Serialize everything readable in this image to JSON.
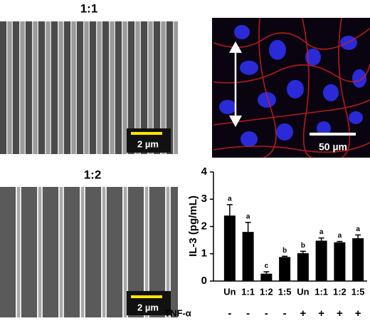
{
  "panels": {
    "sem_1_1": {
      "label": "1:1",
      "scale_bar": "2 µm"
    },
    "fluorescence": {
      "scale_bar": "50 µm"
    },
    "sem_1_2": {
      "label": "1:2",
      "scale_bar": "2 µm"
    }
  },
  "chart_data": {
    "type": "bar",
    "ylabel": "IL-3 (pg/mL)",
    "categories": [
      "Un",
      "1:1",
      "1:2",
      "1:5",
      "Un",
      "1:1",
      "1:2",
      "1:5"
    ],
    "values": [
      2.4,
      1.8,
      0.27,
      0.88,
      1.02,
      1.48,
      1.42,
      1.57
    ],
    "errors": [
      0.4,
      0.35,
      0.07,
      0.03,
      0.07,
      0.1,
      0.03,
      0.12
    ],
    "annotations": [
      "a",
      "a",
      "c",
      "b",
      "b",
      "a",
      "a",
      "a"
    ],
    "treatment_label": "TNF-α",
    "treatment": [
      "-",
      "-",
      "-",
      "-",
      "+",
      "+",
      "+",
      "+"
    ],
    "color": "#000000",
    "ylim": [
      0,
      4
    ],
    "yticks": [
      0,
      1,
      2,
      3,
      4
    ]
  }
}
